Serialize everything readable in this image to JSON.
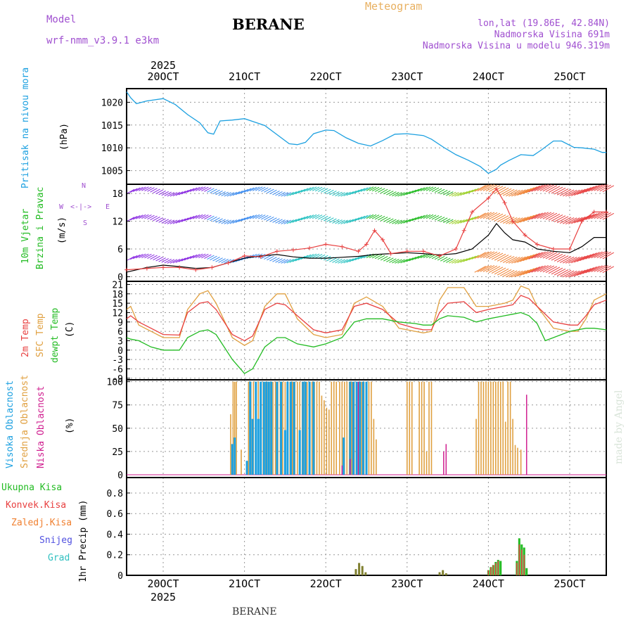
{
  "header": {
    "title": "BERANE",
    "subtitle": "Meteogram",
    "model_label": "Model",
    "model_value": "wrf-nmm_v3.9.1 e3km",
    "lonlat": "lon,lat (19.86E, 42.84N)",
    "elevation": "Nadmorska Visina 691m",
    "model_elevation": "Nadmorska Visina u modelu 946.319m",
    "footer": "BERANE",
    "watermark": "made by Angel"
  },
  "colors": {
    "pressure": "#1ca0e0",
    "wind_label": "#22bb22",
    "temp2m": "#e84040",
    "sfc": "#e0a040",
    "dewpt": "#22bb22",
    "high_cloud": "#1ca0e0",
    "mid_cloud": "#e0a040",
    "low_cloud": "#d02090",
    "total_precip": "#22bb22",
    "conv_precip": "#e84040",
    "frozen_precip": "#f08030",
    "snow": "#5050e0",
    "hail": "#30c0c0",
    "wind_purple": "#8a2be2",
    "wind_gust": "#e84040"
  },
  "chart_data": [
    {
      "id": "pressure",
      "type": "line",
      "x_unit": "day (Oct 2025)",
      "xlim": [
        19.55,
        25.45
      ],
      "x_ticks": [
        "20OCT",
        "21OCT",
        "22OCT",
        "23OCT",
        "24OCT",
        "25OCT"
      ],
      "x_top_year": "2025",
      "ylim": [
        1002,
        1023
      ],
      "y_ticks": [
        "1005",
        "1010",
        "1015",
        "1020"
      ],
      "y_tick_values": [
        1005,
        1010,
        1015,
        1020
      ],
      "ylabel": "(hPa)",
      "side_label": "Pritisak na nivou mora",
      "series": [
        {
          "name": "Pritisak",
          "x": [
            19.55,
            19.6,
            19.67,
            19.8,
            20.0,
            20.15,
            20.3,
            20.45,
            20.55,
            20.62,
            20.7,
            20.85,
            21.0,
            21.1,
            21.25,
            21.4,
            21.55,
            21.65,
            21.75,
            21.85,
            22.0,
            22.1,
            22.25,
            22.4,
            22.55,
            22.7,
            22.85,
            23.0,
            23.2,
            23.3,
            23.45,
            23.6,
            23.75,
            23.9,
            24.0,
            24.1,
            24.15,
            24.25,
            24.4,
            24.55,
            24.65,
            24.8,
            24.9,
            25.05,
            25.15,
            25.3,
            25.4,
            25.45
          ],
          "values": [
            1022.3,
            1021,
            1019.7,
            1020.3,
            1020.8,
            1019.5,
            1017.3,
            1015.5,
            1013.3,
            1013.0,
            1015.9,
            1016.1,
            1016.4,
            1015.8,
            1014.9,
            1012.9,
            1010.9,
            1010.7,
            1011.2,
            1013.1,
            1013.9,
            1013.8,
            1012.2,
            1011.0,
            1010.4,
            1011.6,
            1013.0,
            1013.1,
            1012.7,
            1011.9,
            1010.1,
            1008.5,
            1007.3,
            1005.9,
            1004.4,
            1005.3,
            1006.2,
            1007.2,
            1008.5,
            1008.3,
            1009.5,
            1011.5,
            1011.5,
            1010.1,
            1010.0,
            1009.7,
            1009.0,
            1009.0
          ]
        }
      ]
    },
    {
      "id": "wind",
      "type": "line",
      "xlim": [
        19.55,
        25.45
      ],
      "ylim": [
        -1,
        20
      ],
      "y_ticks": [
        "0",
        "6",
        "12",
        "18"
      ],
      "y_tick_values": [
        0,
        6,
        12,
        18
      ],
      "ylabel": "(m/s)",
      "side_label_1": "10m Vjetar",
      "side_label_2": "Brzina i Pravac",
      "compass": [
        "N",
        "W",
        "<-|->",
        "E",
        "S"
      ],
      "series": [
        {
          "name": "Brzina",
          "x": [
            19.55,
            19.8,
            20.0,
            20.2,
            20.4,
            20.6,
            20.8,
            21.0,
            21.2,
            21.4,
            21.6,
            21.8,
            22.0,
            22.2,
            22.4,
            22.6,
            22.8,
            23.0,
            23.2,
            23.4,
            23.6,
            23.8,
            24.0,
            24.1,
            24.2,
            24.3,
            24.45,
            24.6,
            24.8,
            25.0,
            25.15,
            25.3,
            25.45
          ],
          "values": [
            1,
            2,
            2.5,
            2.2,
            1.8,
            2,
            3,
            4,
            4.5,
            4.8,
            4.3,
            4,
            4,
            4.2,
            4.4,
            4.8,
            5,
            5.2,
            5,
            4.7,
            5,
            6,
            9,
            11.5,
            9.5,
            8,
            7.5,
            6,
            5.5,
            5.2,
            6.5,
            8.5,
            8.5
          ]
        },
        {
          "name": "Udari",
          "x": [
            19.55,
            19.8,
            20.0,
            20.2,
            20.4,
            20.6,
            20.8,
            21.0,
            21.2,
            21.4,
            21.6,
            21.8,
            22.0,
            22.2,
            22.4,
            22.5,
            22.6,
            22.7,
            22.8,
            23.0,
            23.2,
            23.4,
            23.6,
            23.7,
            23.8,
            24.0,
            24.1,
            24.2,
            24.3,
            24.45,
            24.6,
            24.8,
            25.0,
            25.15,
            25.3,
            25.45
          ],
          "values": [
            1.5,
            1.8,
            2,
            2,
            1.5,
            2,
            3,
            4.5,
            4.3,
            5.5,
            5.8,
            6.2,
            7,
            6.5,
            5.5,
            7,
            10,
            8,
            5,
            5.5,
            5.5,
            4.5,
            6,
            10,
            14,
            17,
            19,
            16,
            12,
            9,
            7,
            6,
            6,
            12,
            14,
            14
          ]
        }
      ]
    },
    {
      "id": "temperature",
      "type": "line",
      "xlim": [
        19.55,
        25.45
      ],
      "ylim": [
        -9.5,
        22
      ],
      "y_ticks": [
        "-9",
        "-6",
        "-3",
        "0",
        "3",
        "6",
        "9",
        "12",
        "15",
        "18",
        "21"
      ],
      "y_tick_values": [
        -9,
        -6,
        -3,
        0,
        3,
        6,
        9,
        12,
        15,
        18,
        21
      ],
      "ylabel": "(C)",
      "side_label_1": "2m Temp",
      "side_label_2": "SFC Temp",
      "side_label_3": "dewpt Temp",
      "series": [
        {
          "name": "2m Temp",
          "x": [
            19.55,
            19.6,
            19.7,
            19.85,
            20.0,
            20.2,
            20.3,
            20.45,
            20.55,
            20.65,
            20.85,
            21.0,
            21.1,
            21.25,
            21.4,
            21.5,
            21.65,
            21.85,
            22.0,
            22.2,
            22.35,
            22.5,
            22.7,
            22.9,
            23.1,
            23.2,
            23.3,
            23.4,
            23.5,
            23.7,
            23.85,
            24.0,
            24.2,
            24.3,
            24.4,
            24.5,
            24.6,
            24.8,
            25.0,
            25.1,
            25.2,
            25.3,
            25.45
          ],
          "values": [
            10,
            11,
            9,
            7,
            5,
            4.8,
            12,
            15,
            15.5,
            13,
            5,
            3,
            4.5,
            13,
            15,
            14.5,
            11,
            6.5,
            5.5,
            6.5,
            14,
            15,
            13,
            8.5,
            7,
            6.5,
            6.5,
            12,
            15,
            15.5,
            12,
            13,
            14,
            14.5,
            17.5,
            16.5,
            14,
            9,
            8,
            8,
            11,
            14.5,
            16
          ]
        },
        {
          "name": "SFC Temp",
          "x": [
            19.55,
            19.6,
            19.7,
            19.85,
            20.0,
            20.2,
            20.3,
            20.45,
            20.55,
            20.65,
            20.85,
            21.0,
            21.1,
            21.25,
            21.4,
            21.5,
            21.65,
            21.85,
            22.0,
            22.2,
            22.35,
            22.5,
            22.7,
            22.9,
            23.1,
            23.2,
            23.3,
            23.4,
            23.5,
            23.7,
            23.85,
            24.0,
            24.2,
            24.3,
            24.4,
            24.5,
            24.6,
            24.8,
            25.0,
            25.1,
            25.2,
            25.3,
            25.45
          ],
          "values": [
            13,
            14,
            8,
            6,
            4,
            4,
            13,
            18,
            19,
            15,
            4,
            1.5,
            3,
            14,
            18,
            18,
            10,
            5,
            4,
            5,
            15,
            17,
            14,
            7,
            6,
            5.5,
            6,
            16,
            20,
            20,
            14,
            14,
            15,
            16,
            20.5,
            19.5,
            14,
            7,
            6,
            6,
            10,
            16,
            18
          ]
        },
        {
          "name": "dewpt Temp",
          "x": [
            19.55,
            19.6,
            19.7,
            19.85,
            20.0,
            20.2,
            20.3,
            20.45,
            20.55,
            20.65,
            20.85,
            21.0,
            21.1,
            21.25,
            21.4,
            21.5,
            21.65,
            21.85,
            22.0,
            22.2,
            22.35,
            22.5,
            22.7,
            22.9,
            23.1,
            23.2,
            23.3,
            23.4,
            23.5,
            23.7,
            23.85,
            24.0,
            24.2,
            24.3,
            24.4,
            24.5,
            24.6,
            24.7,
            24.8,
            25.0,
            25.2,
            25.3,
            25.45
          ],
          "values": [
            4,
            3.5,
            3,
            1,
            0,
            0,
            4,
            6,
            6.5,
            5,
            -3,
            -7.5,
            -6,
            1,
            4,
            4,
            2,
            1,
            2,
            4,
            9,
            10,
            10,
            9,
            8.5,
            8,
            8,
            10,
            11,
            10.5,
            9,
            10,
            11,
            11.5,
            12,
            11,
            8.5,
            3,
            4,
            6,
            7,
            7,
            6.5
          ]
        }
      ]
    },
    {
      "id": "clouds",
      "type": "bar",
      "xlim": [
        19.55,
        25.45
      ],
      "ylim": [
        -3,
        102
      ],
      "y_ticks": [
        "0",
        "25",
        "50",
        "75",
        "100"
      ],
      "y_tick_values": [
        0,
        25,
        50,
        75,
        100
      ],
      "ylabel": "(%)",
      "side_label_1": "Visoka Oblacnost",
      "side_label_2": "Srednja Oblacnost",
      "side_label_3": "Niska Oblacnost",
      "series": [
        {
          "name": "Srednja",
          "x": [
            20.83,
            20.86,
            20.88,
            20.9,
            20.96,
            21.05,
            21.08,
            21.11,
            21.14,
            21.17,
            21.2,
            21.23,
            21.26,
            21.29,
            21.32,
            21.35,
            21.38,
            21.41,
            21.44,
            21.47,
            21.5,
            21.56,
            21.59,
            21.62,
            21.65,
            21.68,
            21.71,
            21.74,
            21.77,
            21.8,
            21.83,
            21.86,
            21.89,
            21.92,
            21.95,
            21.98,
            22.01,
            22.04,
            22.07,
            22.1,
            22.13,
            22.17,
            22.2,
            22.23,
            22.26,
            22.29,
            22.32,
            22.35,
            22.38,
            22.41,
            22.44,
            22.47,
            22.5,
            22.53,
            22.56,
            22.59,
            22.62,
            23.0,
            23.03,
            23.06,
            23.15,
            23.18,
            23.21,
            23.24,
            23.27,
            23.3,
            23.85,
            23.88,
            23.91,
            23.94,
            23.97,
            24.0,
            24.03,
            24.06,
            24.09,
            24.12,
            24.15,
            24.18,
            24.21,
            24.24,
            24.27,
            24.3,
            24.33,
            24.36,
            24.4
          ],
          "values": [
            65,
            100,
            100,
            100,
            27,
            100,
            100,
            100,
            100,
            100,
            100,
            100,
            100,
            100,
            100,
            100,
            100,
            100,
            100,
            100,
            100,
            100,
            100,
            100,
            100,
            100,
            100,
            100,
            100,
            100,
            100,
            100,
            100,
            100,
            85,
            80,
            72,
            70,
            100,
            100,
            100,
            100,
            100,
            100,
            100,
            100,
            100,
            100,
            100,
            100,
            100,
            100,
            100,
            100,
            100,
            60,
            38,
            100,
            100,
            100,
            100,
            100,
            100,
            25,
            100,
            100,
            60,
            100,
            100,
            100,
            100,
            100,
            100,
            100,
            100,
            100,
            100,
            100,
            57,
            100,
            100,
            60,
            32,
            29,
            27
          ]
        },
        {
          "name": "Visoka",
          "x": [
            20.85,
            20.88,
            21.03,
            21.07,
            21.1,
            21.14,
            21.17,
            21.2,
            21.24,
            21.27,
            21.3,
            21.33,
            21.4,
            21.45,
            21.5,
            21.53,
            21.57,
            21.61,
            21.68,
            21.72,
            21.75,
            21.8,
            21.85,
            22.22,
            22.3,
            22.34,
            22.38,
            22.42,
            22.46,
            22.5
          ],
          "values": [
            33,
            40,
            15,
            100,
            60,
            100,
            60,
            100,
            100,
            100,
            100,
            100,
            100,
            100,
            48,
            100,
            100,
            100,
            48,
            100,
            100,
            100,
            100,
            40,
            100,
            100,
            100,
            100,
            100,
            100
          ]
        },
        {
          "name": "Niska",
          "x": [
            22.2,
            22.3,
            22.4,
            23.45,
            23.48,
            24.47
          ],
          "values": [
            10,
            17,
            100,
            25,
            33,
            86
          ]
        }
      ]
    },
    {
      "id": "precip",
      "type": "bar",
      "xlim": [
        19.55,
        25.45
      ],
      "ylim": [
        0,
        0.95
      ],
      "y_ticks": [
        "0",
        "0.2",
        "0.4",
        "0.6",
        "0.8"
      ],
      "y_tick_values": [
        0,
        0.2,
        0.4,
        0.6,
        0.8
      ],
      "ylabel": "1hr Precip (mm)",
      "side_labels": [
        "Ukupna Kisa",
        "Konvek.Kisa",
        "Zaledj.Kisa",
        "Snijeg",
        "Grad"
      ],
      "x_bottom_year": "2025",
      "series": [
        {
          "name": "Ukupna Kisa",
          "x": [
            22.37,
            22.41,
            22.45,
            22.49,
            23.4,
            23.44,
            23.48,
            24.0,
            24.03,
            24.06,
            24.09,
            24.12,
            24.15,
            24.35,
            24.38,
            24.41,
            24.44,
            24.47
          ],
          "values": [
            0.06,
            0.12,
            0.09,
            0.03,
            0.03,
            0.05,
            0.02,
            0.05,
            0.08,
            0.1,
            0.13,
            0.15,
            0.14,
            0.14,
            0.36,
            0.3,
            0.27,
            0.07
          ]
        },
        {
          "name": "Konvek.Kisa",
          "x": [
            22.37,
            22.41,
            22.45,
            23.4,
            23.44,
            24.0,
            24.03,
            24.06,
            24.09,
            24.12,
            24.35,
            24.38,
            24.41,
            24.44
          ],
          "values": [
            0.06,
            0.12,
            0.09,
            0.03,
            0.05,
            0.05,
            0.08,
            0.1,
            0.12,
            0.14,
            0.12,
            0.3,
            0.25,
            0.2
          ]
        }
      ]
    }
  ]
}
